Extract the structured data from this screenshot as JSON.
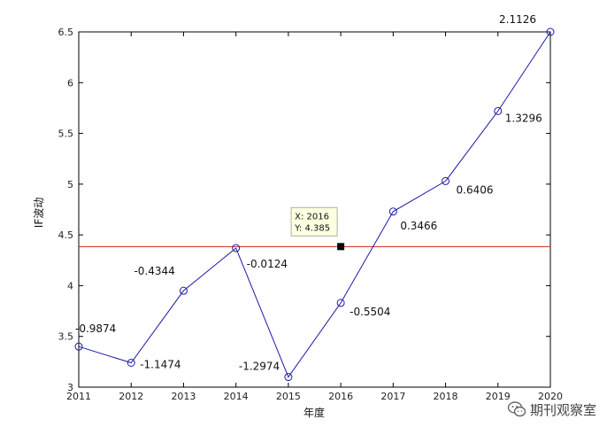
{
  "chart_data": {
    "type": "line",
    "title": "",
    "xlabel": "年度",
    "ylabel": "IF波动",
    "x": [
      2011,
      2012,
      2013,
      2014,
      2015,
      2016,
      2017,
      2018,
      2019,
      2020
    ],
    "xticks": [
      "2011",
      "2012",
      "2013",
      "2014",
      "2015",
      "2016",
      "2017",
      "2018",
      "2019",
      "2020"
    ],
    "xlim": [
      2011,
      2020
    ],
    "ylim": [
      3,
      6.5
    ],
    "yticks": [
      "3",
      "3.5",
      "4",
      "4.5",
      "5",
      "5.5",
      "6",
      "6.5"
    ],
    "grid": false,
    "series": [
      {
        "values": [
          3.4,
          3.24,
          3.95,
          4.37,
          3.1,
          3.83,
          4.73,
          5.03,
          5.72,
          6.5
        ],
        "color": "#1a1aa8",
        "marker": "circle-open"
      }
    ],
    "point_labels": [
      "-0.9874",
      "-1.1474",
      "-0.4344",
      "-0.0124",
      "-1.2974",
      "-0.5504",
      "0.3466",
      "0.6406",
      "1.3296",
      "2.1126"
    ],
    "reference_line": {
      "y": 4.385,
      "color": "#d42020"
    },
    "datatip": {
      "x_text": "X: 2016",
      "y_text": "Y: 4.385",
      "x": 2016,
      "y": 4.385
    }
  },
  "watermark": {
    "text": "期刊观察室",
    "icon": "wechat-icon"
  }
}
